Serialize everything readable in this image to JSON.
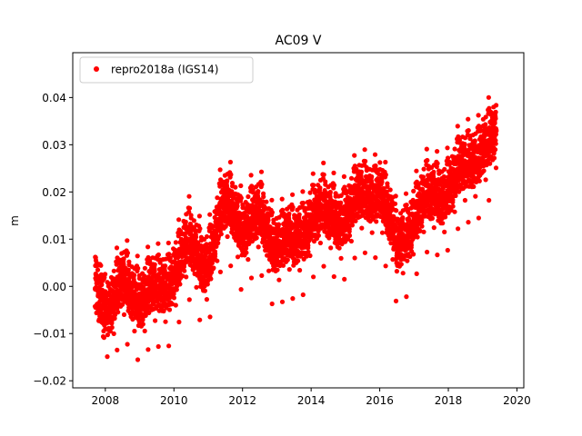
{
  "chart_data": {
    "type": "scatter",
    "title": "AC09 V",
    "xlabel": "",
    "ylabel": "m",
    "xlim": [
      2007.05,
      2020.2
    ],
    "ylim": [
      -0.0215,
      0.0495
    ],
    "x_ticks": [
      2008,
      2010,
      2012,
      2014,
      2016,
      2018,
      2020
    ],
    "x_tick_labels": [
      "2008",
      "2010",
      "2012",
      "2014",
      "2016",
      "2018",
      "2020"
    ],
    "y_ticks": [
      -0.02,
      -0.01,
      0.0,
      0.01,
      0.02,
      0.03,
      0.04
    ],
    "y_tick_labels": [
      "−0.02",
      "−0.01",
      "0.00",
      "0.01",
      "0.02",
      "0.03",
      "0.04"
    ],
    "grid": false,
    "legend_position": "top-left",
    "series": [
      {
        "name": "repro2018a (IGS14)",
        "color": "#ff0000",
        "marker": "circle",
        "sampling": "daily",
        "x_start": 2007.7,
        "x_end": 2019.4,
        "trend": {
          "x": [
            2007.7,
            2008.3,
            2008.9,
            2009.5,
            2010.0,
            2010.6,
            2011.2,
            2011.8,
            2012.4,
            2013.0,
            2013.5,
            2014.0,
            2014.5,
            2015.0,
            2015.5,
            2016.0,
            2016.5,
            2017.0,
            2017.5,
            2018.0,
            2018.5,
            2019.0,
            2019.4
          ],
          "y": [
            0.002,
            -0.004,
            0.002,
            -0.004,
            0.007,
            0.006,
            0.011,
            0.018,
            0.012,
            0.013,
            0.006,
            0.019,
            0.012,
            0.019,
            0.016,
            0.025,
            0.005,
            0.019,
            0.016,
            0.025,
            0.022,
            0.034,
            0.029
          ]
        },
        "seasonal_amplitude": 0.004,
        "noise_sd": 0.0033,
        "y_min": -0.0185,
        "y_max": 0.0465
      }
    ]
  }
}
